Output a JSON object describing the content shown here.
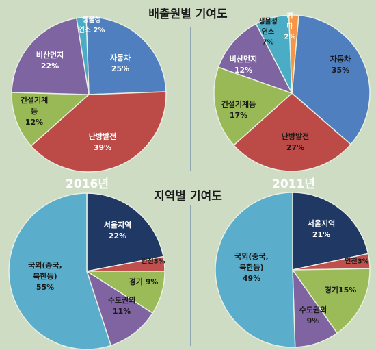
{
  "section_titles": {
    "emission_source": "배출원별 기여도",
    "region": "지역별 기여도"
  },
  "years": {
    "left": "2016년",
    "right": "2011년"
  },
  "colors": {
    "background": "#cfdcc4",
    "car": "#4f7fbe",
    "heating_power": "#bc4a47",
    "construction": "#98b955",
    "dust": "#7f64a2",
    "biomass": "#4bacc6",
    "other": "#f79646",
    "seoul": "#1f3864",
    "incheon": "#c0504d",
    "gyeonggi": "#9bbb59",
    "capital": "#8064a2",
    "overseas": "#5aaecc"
  },
  "chart_data": [
    {
      "type": "pie",
      "title": "배출원별 기여도",
      "year": "2016년",
      "slices": [
        {
          "label": "자동차",
          "value": 25,
          "value_label": "25%",
          "color": "#4f7fbe"
        },
        {
          "label": "난방발전",
          "value": 39,
          "value_label": "39%",
          "color": "#bc4a47"
        },
        {
          "label": "건설기계 등",
          "value": 12,
          "value_label": "12%",
          "color": "#98b955"
        },
        {
          "label": "비산먼지",
          "value": 22,
          "value_label": "22%",
          "color": "#7f64a2"
        },
        {
          "label": "생물성 연소",
          "value": 2,
          "value_label": "2%",
          "color": "#4bacc6"
        }
      ]
    },
    {
      "type": "pie",
      "title": "배출원별 기여도",
      "year": "2011년",
      "slices": [
        {
          "label": "자동차",
          "value": 35,
          "value_label": "35%",
          "color": "#4f7fbe"
        },
        {
          "label": "난방발전",
          "value": 27,
          "value_label": "27%",
          "color": "#bc4a47"
        },
        {
          "label": "건설기계등",
          "value": 17,
          "value_label": "17%",
          "color": "#98b955"
        },
        {
          "label": "비산먼지",
          "value": 12,
          "value_label": "12%",
          "color": "#7f64a2"
        },
        {
          "label": "생물성 연소",
          "value": 7,
          "value_label": "7%",
          "color": "#4bacc6"
        },
        {
          "label": "기타",
          "value": 2,
          "value_label": "2%",
          "color": "#f79646"
        }
      ]
    },
    {
      "type": "pie",
      "title": "지역별 기여도",
      "year": "2016년",
      "slices": [
        {
          "label": "서울지역",
          "value": 22,
          "value_label": "22%",
          "color": "#1f3864"
        },
        {
          "label": "인천",
          "value": 3,
          "value_label": "3%",
          "color": "#c0504d"
        },
        {
          "label": "경기",
          "value": 9,
          "value_label": "9%",
          "color": "#9bbb59"
        },
        {
          "label": "수도권외",
          "value": 11,
          "value_label": "11%",
          "color": "#8064a2"
        },
        {
          "label": "국외(중국, 북한등)",
          "value": 55,
          "value_label": "55%",
          "color": "#5aaecc"
        }
      ]
    },
    {
      "type": "pie",
      "title": "지역별 기여도",
      "year": "2011년",
      "slices": [
        {
          "label": "서울지역",
          "value": 21,
          "value_label": "21%",
          "color": "#1f3864"
        },
        {
          "label": "인천",
          "value": 3,
          "value_label": "3%",
          "color": "#c0504d"
        },
        {
          "label": "경기",
          "value": 15,
          "value_label": "15%",
          "color": "#9bbb59"
        },
        {
          "label": "수도권외",
          "value": 9,
          "value_label": "9%",
          "color": "#8064a2"
        },
        {
          "label": "국외(중국, 북한등)",
          "value": 49,
          "value_label": "49%",
          "color": "#5aaecc"
        }
      ]
    }
  ]
}
